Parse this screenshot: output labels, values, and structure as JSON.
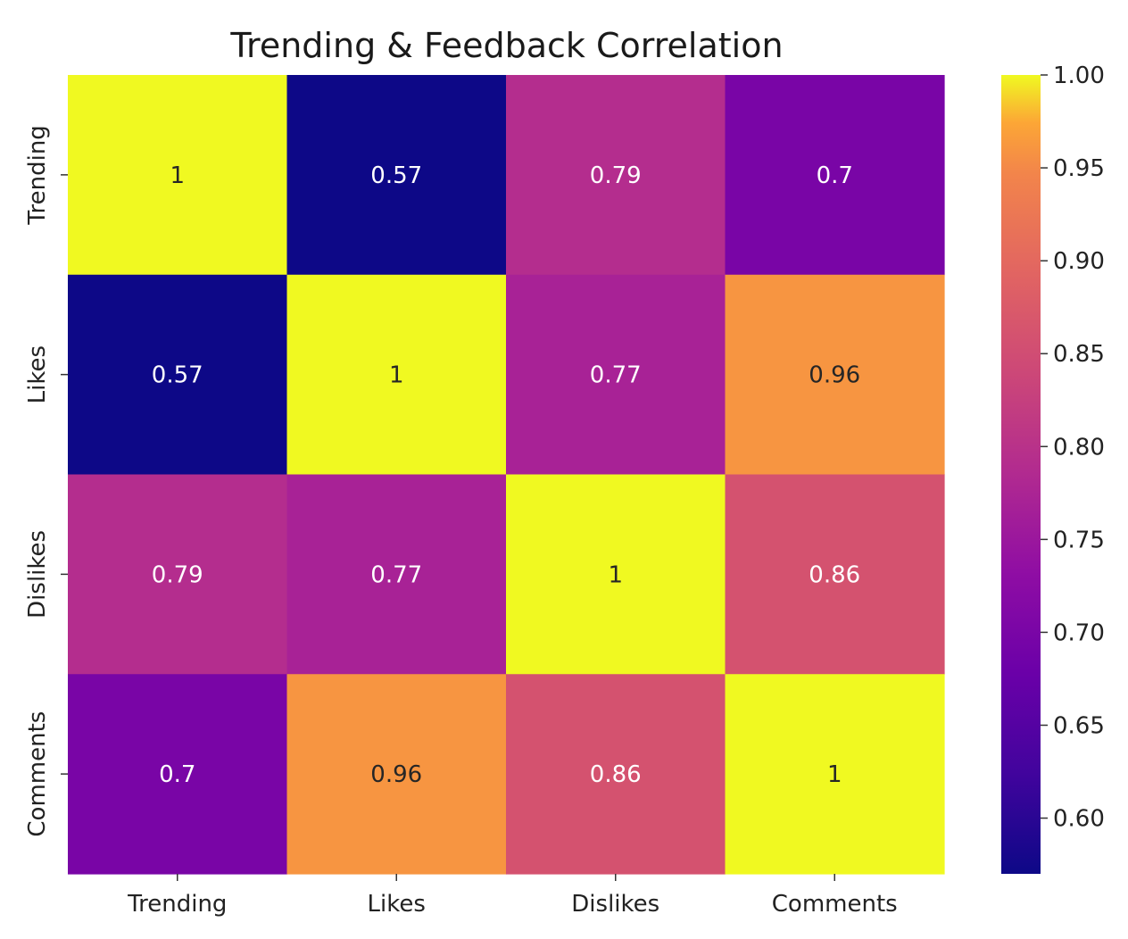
{
  "chart_data": {
    "type": "heatmap",
    "title": "Trending & Feedback Correlation",
    "x_categories": [
      "Trending",
      "Likes",
      "Dislikes",
      "Comments"
    ],
    "y_categories": [
      "Trending",
      "Likes",
      "Dislikes",
      "Comments"
    ],
    "values": [
      [
        1,
        0.57,
        0.79,
        0.7
      ],
      [
        0.57,
        1,
        0.77,
        0.96
      ],
      [
        0.79,
        0.77,
        1,
        0.86
      ],
      [
        0.7,
        0.96,
        0.86,
        1
      ]
    ],
    "value_labels": [
      [
        "1",
        "0.57",
        "0.79",
        "0.7"
      ],
      [
        "0.57",
        "1",
        "0.77",
        "0.96"
      ],
      [
        "0.79",
        "0.77",
        "1",
        "0.86"
      ],
      [
        "0.7",
        "0.96",
        "0.86",
        "1"
      ]
    ],
    "colormap": "plasma",
    "colorbar": {
      "range": [
        0.57,
        1.0
      ],
      "ticks": [
        0.6,
        0.65,
        0.7,
        0.75,
        0.8,
        0.85,
        0.9,
        0.95,
        1.0
      ],
      "tick_labels": [
        "0.60",
        "0.65",
        "0.70",
        "0.75",
        "0.80",
        "0.85",
        "0.90",
        "0.95",
        "1.00"
      ]
    }
  }
}
